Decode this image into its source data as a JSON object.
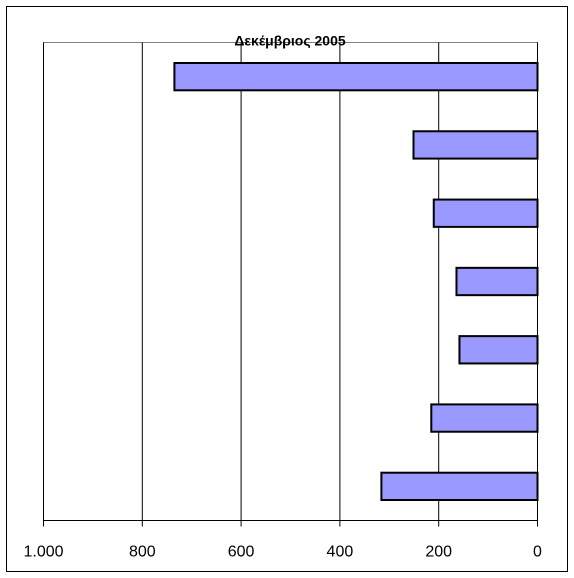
{
  "chart_data": {
    "type": "barh",
    "title": "Δεκέμβριος  2005",
    "categories": [
      null,
      null,
      null,
      null,
      null,
      null,
      null
    ],
    "values": [
      735,
      251,
      210,
      164,
      158,
      215,
      316
    ],
    "color": "#9999ff",
    "xlim": [
      1000,
      0
    ],
    "xticks": [
      {
        "value": 1000,
        "label": "1.000"
      },
      800,
      600,
      400,
      200,
      0
    ],
    "grid": true
  }
}
